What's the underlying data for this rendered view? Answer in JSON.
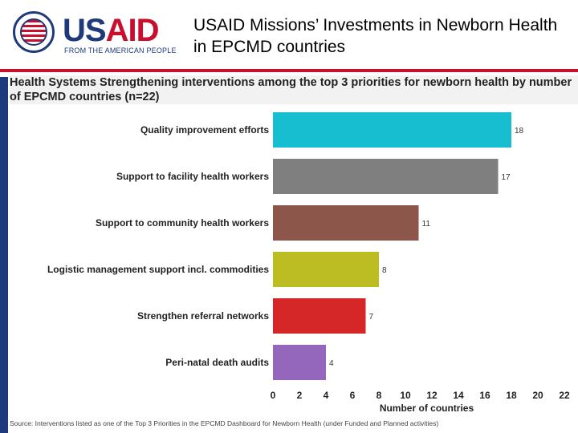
{
  "header": {
    "brand_us": "US",
    "brand_aid": "AID",
    "brand_tagline": "FROM THE AMERICAN PEOPLE",
    "title": "USAID Missions’ Investments in Newborn Health in EPCMD countries"
  },
  "chart_data": {
    "type": "bar",
    "orientation": "horizontal",
    "title": "Health Systems Strengthening interventions among the top 3 priorities for newborn health by number of EPCMD countries (n=22)",
    "xlabel": "Number of countries",
    "ylabel": "",
    "xlim": [
      0,
      22
    ],
    "xticks": [
      "0",
      "2",
      "4",
      "6",
      "8",
      "10",
      "12",
      "14",
      "16",
      "18",
      "20",
      "22"
    ],
    "grid": false,
    "categories": [
      "Quality improvement efforts",
      "Support to facility health workers",
      "Support to community health workers",
      "Logistic management support incl. commodities",
      "Strengthen referral networks",
      "Peri-natal death audits"
    ],
    "values": [
      18,
      17,
      11,
      8,
      7,
      4
    ],
    "colors": [
      "#17becf",
      "#7f7f7f",
      "#8c564b",
      "#bcbd22",
      "#d62728",
      "#9467bd"
    ]
  },
  "source": "Source: Interventions listed as one of the Top 3 Priorities in the EPCMD Dashboard for Newborn Health (under Funded and Planned activities)"
}
